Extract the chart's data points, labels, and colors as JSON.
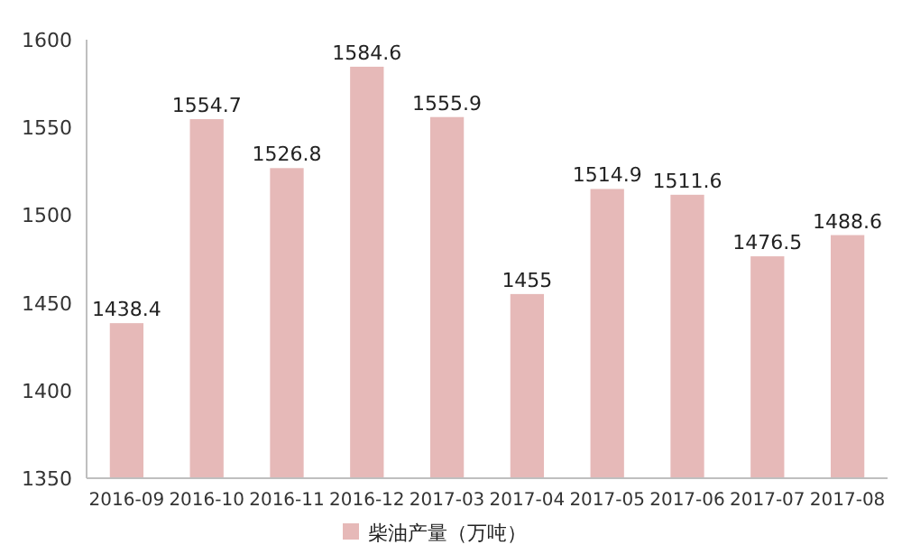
{
  "chart_data": {
    "type": "bar",
    "categories": [
      "2016-09",
      "2016-10",
      "2016-11",
      "2016-12",
      "2017-03",
      "2017-04",
      "2017-05",
      "2017-06",
      "2017-07",
      "2017-08"
    ],
    "series": [
      {
        "name": "柴油产量（万吨）",
        "color": "#e6b9b8",
        "values": [
          1438.4,
          1554.7,
          1526.8,
          1584.6,
          1555.9,
          1455,
          1514.9,
          1511.6,
          1476.5,
          1488.6
        ]
      }
    ],
    "ylim": [
      1350,
      1600
    ],
    "yticks": [
      1350,
      1400,
      1450,
      1500,
      1550,
      1600
    ],
    "data_labels": true,
    "legend": "bottom"
  }
}
